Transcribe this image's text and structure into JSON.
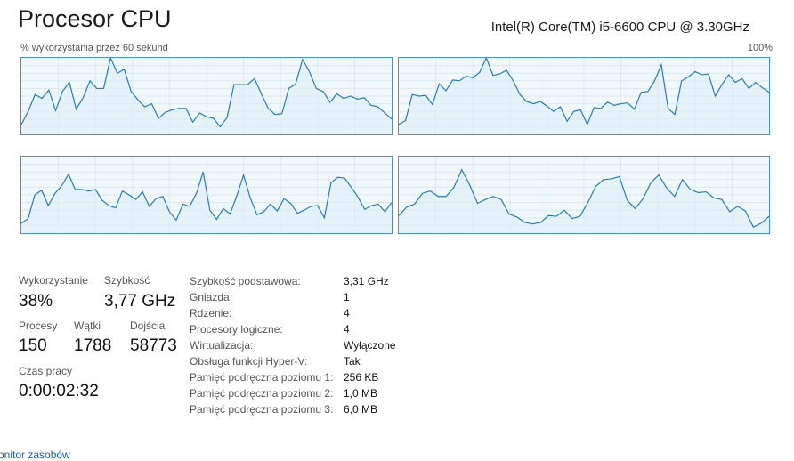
{
  "header": {
    "title": "Procesor CPU",
    "cpu_name": "Intel(R) Core(TM) i5-6600 CPU @ 3.30GHz",
    "graph_caption": "% wykorzystania przez 60 sekund",
    "graph_max": "100%"
  },
  "colors": {
    "graph_border": "#4a90c2",
    "graph_line": "#2b7ab5",
    "graph_fill": "#deeef8",
    "graph_background": "#f1f8fc",
    "grid": "#d9e9f4",
    "link": "#1a5fb4"
  },
  "chart_data": {
    "type": "line",
    "ylim": [
      0,
      100
    ],
    "grid": true,
    "series": [
      {
        "values": [
          13,
          30,
          52,
          47,
          58,
          31,
          56,
          68,
          33,
          48,
          70,
          60,
          60,
          100,
          80,
          85,
          56,
          45,
          36,
          40,
          21,
          29,
          32,
          34,
          34,
          16,
          28,
          23,
          21,
          10,
          22,
          65,
          65,
          65,
          73,
          53,
          34,
          26,
          27,
          60,
          66,
          98,
          82,
          60,
          56,
          42,
          53,
          47,
          50,
          46,
          48,
          38,
          36,
          28,
          20
        ]
      },
      {
        "values": [
          13,
          18,
          52,
          50,
          51,
          39,
          66,
          57,
          71,
          70,
          76,
          74,
          81,
          100,
          77,
          79,
          84,
          70,
          52,
          43,
          40,
          43,
          37,
          30,
          36,
          17,
          30,
          32,
          13,
          35,
          34,
          42,
          38,
          40,
          41,
          33,
          55,
          56,
          70,
          91,
          34,
          26,
          70,
          75,
          82,
          78,
          79,
          50,
          65,
          78,
          68,
          73,
          60,
          68,
          61,
          55
        ]
      },
      {
        "values": [
          13,
          19,
          50,
          56,
          36,
          52,
          62,
          77,
          57,
          57,
          55,
          57,
          43,
          36,
          33,
          55,
          50,
          44,
          54,
          35,
          45,
          48,
          28,
          17,
          38,
          35,
          52,
          80,
          30,
          18,
          32,
          25,
          49,
          76,
          46,
          24,
          28,
          38,
          29,
          45,
          39,
          26,
          30,
          35,
          36,
          20,
          66,
          73,
          72,
          60,
          47,
          31,
          36,
          38,
          28,
          40
        ]
      },
      {
        "values": [
          23,
          34,
          38,
          52,
          55,
          48,
          48,
          60,
          83,
          63,
          39,
          44,
          48,
          44,
          25,
          21,
          14,
          12,
          14,
          23,
          22,
          30,
          19,
          22,
          40,
          61,
          70,
          71,
          74,
          43,
          32,
          45,
          66,
          76,
          59,
          48,
          70,
          57,
          53,
          54,
          46,
          44,
          28,
          35,
          29,
          8,
          13,
          22
        ]
      }
    ]
  },
  "stats": {
    "utilization": {
      "label": "Wykorzystanie",
      "value": "38%"
    },
    "speed": {
      "label": "Szybkość",
      "value": "3,77 GHz"
    },
    "processes": {
      "label": "Procesy",
      "value": "150"
    },
    "threads": {
      "label": "Wątki",
      "value": "1788"
    },
    "handles": {
      "label": "Dojścia",
      "value": "58773"
    },
    "uptime": {
      "label": "Czas pracy",
      "value": "0:00:02:32"
    }
  },
  "details": [
    {
      "key": "Szybkość podstawowa:",
      "value": "3,31 GHz"
    },
    {
      "key": "Gniazda:",
      "value": "1"
    },
    {
      "key": "Rdzenie:",
      "value": "4"
    },
    {
      "key": "Procesory logiczne:",
      "value": "4"
    },
    {
      "key": "Wirtualizacja:",
      "value": "Wyłączone"
    },
    {
      "key": "Obsługa funkcji Hyper-V:",
      "value": "Tak"
    },
    {
      "key": "Pamięć podręczna poziomu 1:",
      "value": "256 KB"
    },
    {
      "key": "Pamięć podręczna poziomu 2:",
      "value": "1,0 MB"
    },
    {
      "key": "Pamięć podręczna poziomu 3:",
      "value": "6,0 MB"
    }
  ],
  "footer": {
    "link": "onitor zasobów"
  }
}
